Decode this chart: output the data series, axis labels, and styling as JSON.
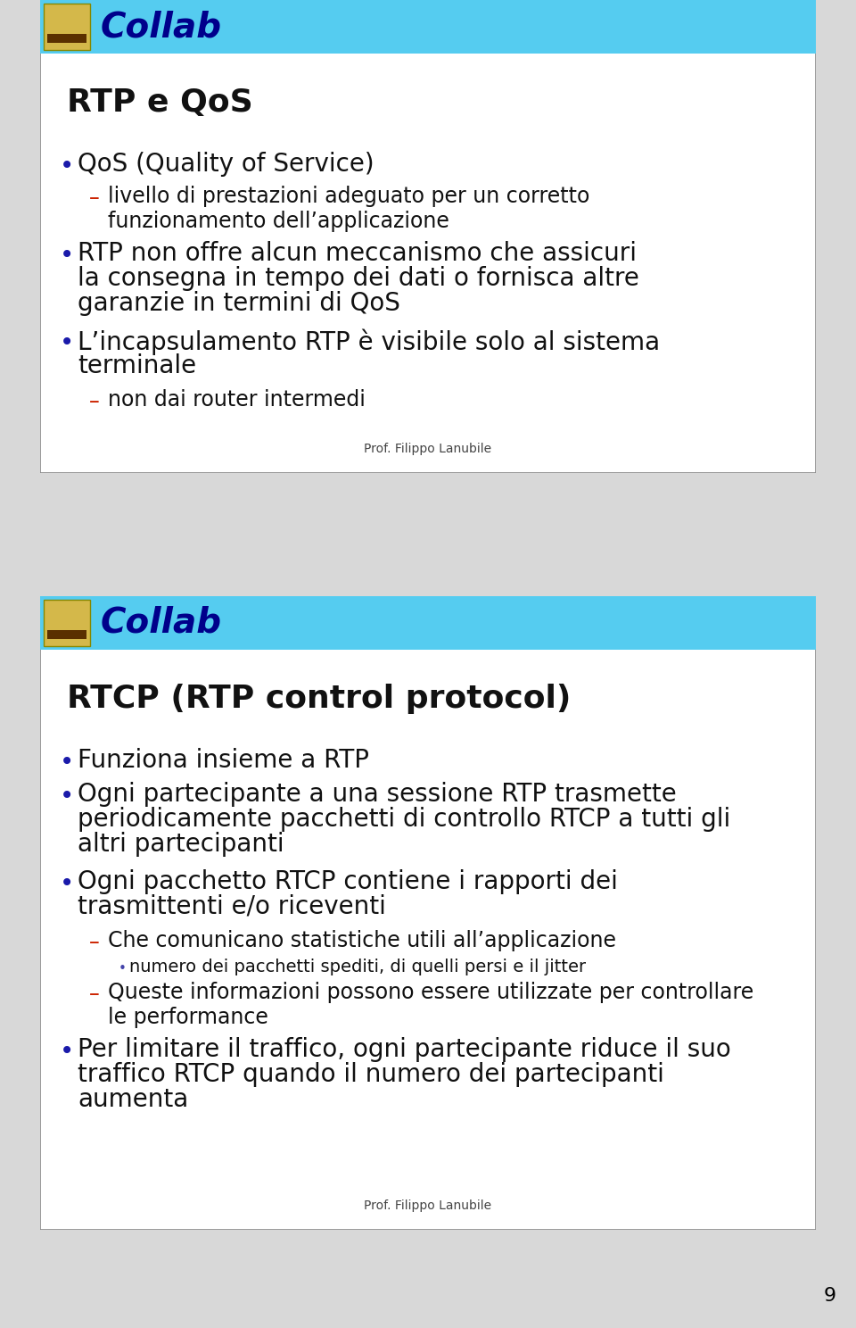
{
  "bg_color": "#d8d8d8",
  "slide_bg": "#ffffff",
  "header_bg": "#55ccf0",
  "header_text": "Collab",
  "header_text_color": "#00008B",
  "slide1_title": "RTP e QoS",
  "slide1_bullets": [
    {
      "level": 0,
      "text": "QoS (Quality of Service)"
    },
    {
      "level": 1,
      "text": "livello di prestazioni adeguato per un corretto\nfunzionamento dell’applicazione"
    },
    {
      "level": 0,
      "text": "RTP non offre alcun meccanismo che assicuri\nla consegna in tempo dei dati o fornisca altre\ngaranzie in termini di QoS"
    },
    {
      "level": 0,
      "text": "L’incapsulamento RTP è visibile solo al sistema\nterminale"
    },
    {
      "level": 1,
      "text": "non dai router intermedi"
    }
  ],
  "slide1_footer": "Prof. Filippo Lanubile",
  "slide2_title": "RTCP (RTP control protocol)",
  "slide2_bullets": [
    {
      "level": 0,
      "text": "Funziona insieme a RTP"
    },
    {
      "level": 0,
      "text": "Ogni partecipante a una sessione RTP trasmette\nperiodicamente pacchetti di controllo RTCP a tutti gli\naltri partecipanti"
    },
    {
      "level": 0,
      "text": "Ogni pacchetto RTCP contiene i rapporti dei\ntrasmittenti e/o riceventi"
    },
    {
      "level": 1,
      "text": "Che comunicano statistiche utili all’applicazione"
    },
    {
      "level": 2,
      "text": "numero dei pacchetti spediti, di quelli persi e il jitter"
    },
    {
      "level": 1,
      "text": "Queste informazioni possono essere utilizzate per controllare\nle performance"
    },
    {
      "level": 0,
      "text": "Per limitare il traffico, ogni partecipante riduce il suo\ntraffico RTCP quando il numero dei partecipanti\naumenta"
    }
  ],
  "slide2_footer": "Prof. Filippo Lanubile",
  "page_number": "9",
  "bullet_color": "#1a1aaa",
  "dash_color": "#cc2200",
  "subbullet_color": "#4444aa",
  "text_color": "#111111",
  "title_color": "#111111",
  "footer_color": "#444444",
  "border_color": "#888888"
}
